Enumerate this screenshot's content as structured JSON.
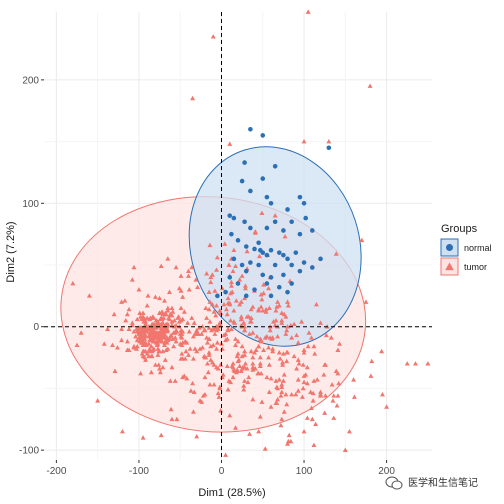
{
  "chart_data": {
    "type": "scatter",
    "title": "",
    "xlabel": "Dim1 (28.5%)",
    "ylabel": "Dim2 (7.2%)",
    "xlim": [
      -215,
      255
    ],
    "ylim": [
      -108,
      255
    ],
    "x_ticks": [
      -200,
      -100,
      0,
      100,
      200
    ],
    "y_ticks": [
      -100,
      0,
      100,
      200
    ],
    "x_tick_labels": [
      "-200",
      "-100",
      "0",
      "100",
      "200"
    ],
    "y_tick_labels": [
      "-100",
      "0",
      "100",
      "200"
    ],
    "grid": true,
    "reference_lines": {
      "x": 0,
      "y": 0,
      "style": "dashed"
    },
    "legend": {
      "title": "Groups",
      "position": "right"
    },
    "series": [
      {
        "name": "normal",
        "marker": "circle",
        "color": "#2b6fb5",
        "ellipse": {
          "cx": 65,
          "cy": 65,
          "rx": 102,
          "ry": 82,
          "angle_deg": 18,
          "fill": "#cfe0f2",
          "stroke": "#2b6fb5"
        },
        "points": [
          [
            35,
            160
          ],
          [
            50,
            155
          ],
          [
            130,
            145
          ],
          [
            28,
            133
          ],
          [
            65,
            130
          ],
          [
            50,
            120
          ],
          [
            25,
            118
          ],
          [
            35,
            110
          ],
          [
            55,
            105
          ],
          [
            95,
            105
          ],
          [
            60,
            100
          ],
          [
            80,
            95
          ],
          [
            10,
            90
          ],
          [
            15,
            88
          ],
          [
            28,
            85
          ],
          [
            100,
            100
          ],
          [
            85,
            85
          ],
          [
            102,
            88
          ],
          [
            65,
            85
          ],
          [
            35,
            80
          ],
          [
            55,
            80
          ],
          [
            75,
            78
          ],
          [
            12,
            75
          ],
          [
            95,
            75
          ],
          [
            110,
            78
          ],
          [
            20,
            70
          ],
          [
            45,
            68
          ],
          [
            30,
            65
          ],
          [
            40,
            63
          ],
          [
            47,
            62
          ],
          [
            50,
            60
          ],
          [
            55,
            58
          ],
          [
            60,
            62
          ],
          [
            70,
            60
          ],
          [
            75,
            58
          ],
          [
            80,
            55
          ],
          [
            90,
            60
          ],
          [
            15,
            55
          ],
          [
            25,
            50
          ],
          [
            35,
            52
          ],
          [
            45,
            50
          ],
          [
            65,
            50
          ],
          [
            85,
            50
          ],
          [
            100,
            52
          ],
          [
            110,
            48
          ],
          [
            120,
            55
          ],
          [
            30,
            45
          ],
          [
            50,
            42
          ],
          [
            60,
            40
          ],
          [
            75,
            42
          ],
          [
            95,
            45
          ],
          [
            10,
            40
          ],
          [
            20,
            35
          ],
          [
            40,
            30
          ],
          [
            55,
            35
          ],
          [
            70,
            32
          ],
          [
            85,
            35
          ],
          [
            -5,
            25
          ],
          [
            5,
            28
          ],
          [
            30,
            25
          ],
          [
            60,
            25
          ],
          [
            80,
            28
          ]
        ]
      },
      {
        "name": "tumor",
        "marker": "triangle",
        "color": "#f0766e",
        "ellipse": {
          "cx": -10,
          "cy": 10,
          "rx": 185,
          "ry": 95,
          "angle_deg": -6,
          "fill": "#fde3e1",
          "stroke": "#f0766e"
        },
        "points": []
      }
    ]
  },
  "watermark": {
    "text": "医学和生信笔记"
  }
}
